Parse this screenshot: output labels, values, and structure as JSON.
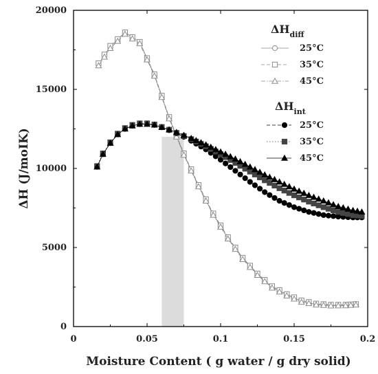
{
  "chart_data": {
    "type": "scatter",
    "title": "",
    "xlabel": "Moisture Content ( g water / g dry solid)",
    "ylabel": "ΔH (J/moIK)",
    "xlim": [
      0,
      0.2
    ],
    "ylim": [
      0,
      20000
    ],
    "x_ticks": [
      "0",
      "0.05",
      "0.1",
      "0.15",
      "0.2"
    ],
    "y_ticks": [
      "0",
      "5000",
      "10000",
      "15000",
      "20000"
    ],
    "grid": false,
    "highlight_band": {
      "x_range": [
        0.06,
        0.075
      ],
      "color": "#dcdcdc"
    },
    "legend": {
      "position": "top-right",
      "groups": [
        {
          "head_main": "ΔH",
          "head_sub": "diff",
          "entries": [
            "25°C",
            "35°C",
            "45°C"
          ]
        },
        {
          "head_main": "ΔH",
          "head_sub": "int",
          "entries": [
            "25°C",
            "35°C",
            "45°C"
          ]
        }
      ]
    },
    "series": [
      {
        "group": "diff",
        "temp": "25°C",
        "marker": "circle-open",
        "line": "solid",
        "color": "#888888",
        "x": [
          0.017,
          0.025,
          0.035,
          0.045,
          0.055,
          0.065,
          0.075,
          0.085,
          0.095,
          0.105,
          0.115,
          0.125,
          0.135,
          0.145,
          0.155,
          0.165,
          0.175,
          0.185,
          0.192
        ],
        "y": [
          16600,
          17700,
          18600,
          18000,
          15900,
          13200,
          10900,
          8900,
          7100,
          5600,
          4300,
          3300,
          2500,
          2000,
          1600,
          1400,
          1350,
          1350,
          1400
        ]
      },
      {
        "group": "diff",
        "temp": "35°C",
        "marker": "square-open",
        "line": "dashed",
        "color": "#888888",
        "x": [
          0.017,
          0.025,
          0.035,
          0.045,
          0.055,
          0.065,
          0.075,
          0.085,
          0.095,
          0.105,
          0.115,
          0.125,
          0.135,
          0.145,
          0.155,
          0.165,
          0.175,
          0.185,
          0.192
        ],
        "y": [
          16650,
          17750,
          18600,
          18000,
          15950,
          13250,
          10950,
          8950,
          7150,
          5650,
          4350,
          3350,
          2550,
          2050,
          1650,
          1450,
          1380,
          1380,
          1420
        ]
      },
      {
        "group": "diff",
        "temp": "45°C",
        "marker": "triangle-open",
        "line": "dashdot",
        "color": "#888888",
        "x": [
          0.017,
          0.025,
          0.035,
          0.045,
          0.055,
          0.065,
          0.075,
          0.085,
          0.095,
          0.105,
          0.115,
          0.125,
          0.135,
          0.145,
          0.155,
          0.165,
          0.175,
          0.185,
          0.192
        ],
        "y": [
          16500,
          17600,
          18500,
          17900,
          15850,
          13150,
          10850,
          8850,
          7050,
          5550,
          4250,
          3250,
          2450,
          1950,
          1550,
          1380,
          1320,
          1330,
          1380
        ]
      },
      {
        "group": "int",
        "temp": "25°C",
        "marker": "circle-filled",
        "line": "dashed",
        "color": "#000000",
        "x": [
          0.016,
          0.02,
          0.025,
          0.03,
          0.035,
          0.04,
          0.045,
          0.05,
          0.055,
          0.06,
          0.065,
          0.07,
          0.075,
          0.08,
          0.09,
          0.1,
          0.11,
          0.12,
          0.13,
          0.14,
          0.15,
          0.16,
          0.17,
          0.18,
          0.19,
          0.196
        ],
        "y": [
          10100,
          10900,
          11600,
          12150,
          12500,
          12700,
          12800,
          12820,
          12750,
          12600,
          12420,
          12220,
          12000,
          11750,
          11200,
          10550,
          9850,
          9150,
          8500,
          7950,
          7550,
          7250,
          7050,
          6950,
          6900,
          6900
        ]
      },
      {
        "group": "int",
        "temp": "35°C",
        "marker": "square-filled",
        "line": "dotted",
        "color": "#444444",
        "x": [
          0.016,
          0.02,
          0.025,
          0.03,
          0.035,
          0.04,
          0.045,
          0.05,
          0.055,
          0.06,
          0.065,
          0.07,
          0.075,
          0.08,
          0.09,
          0.1,
          0.11,
          0.12,
          0.13,
          0.14,
          0.15,
          0.16,
          0.17,
          0.18,
          0.19,
          0.196
        ],
        "y": [
          10150,
          10950,
          11650,
          12200,
          12550,
          12750,
          12850,
          12850,
          12780,
          12620,
          12450,
          12250,
          12050,
          11850,
          11400,
          10900,
          10350,
          9800,
          9250,
          8750,
          8300,
          7900,
          7550,
          7250,
          7050,
          7000
        ]
      },
      {
        "group": "int",
        "temp": "45°C",
        "marker": "triangle-filled",
        "line": "solid",
        "color": "#000000",
        "x": [
          0.016,
          0.02,
          0.025,
          0.03,
          0.035,
          0.04,
          0.045,
          0.05,
          0.055,
          0.06,
          0.065,
          0.07,
          0.075,
          0.08,
          0.09,
          0.1,
          0.11,
          0.12,
          0.13,
          0.14,
          0.15,
          0.16,
          0.17,
          0.18,
          0.19,
          0.196
        ],
        "y": [
          10100,
          10900,
          11600,
          12150,
          12500,
          12700,
          12800,
          12800,
          12750,
          12600,
          12450,
          12280,
          12100,
          11900,
          11500,
          11050,
          10600,
          10100,
          9600,
          9150,
          8700,
          8300,
          7950,
          7600,
          7350,
          7250
        ]
      }
    ]
  }
}
